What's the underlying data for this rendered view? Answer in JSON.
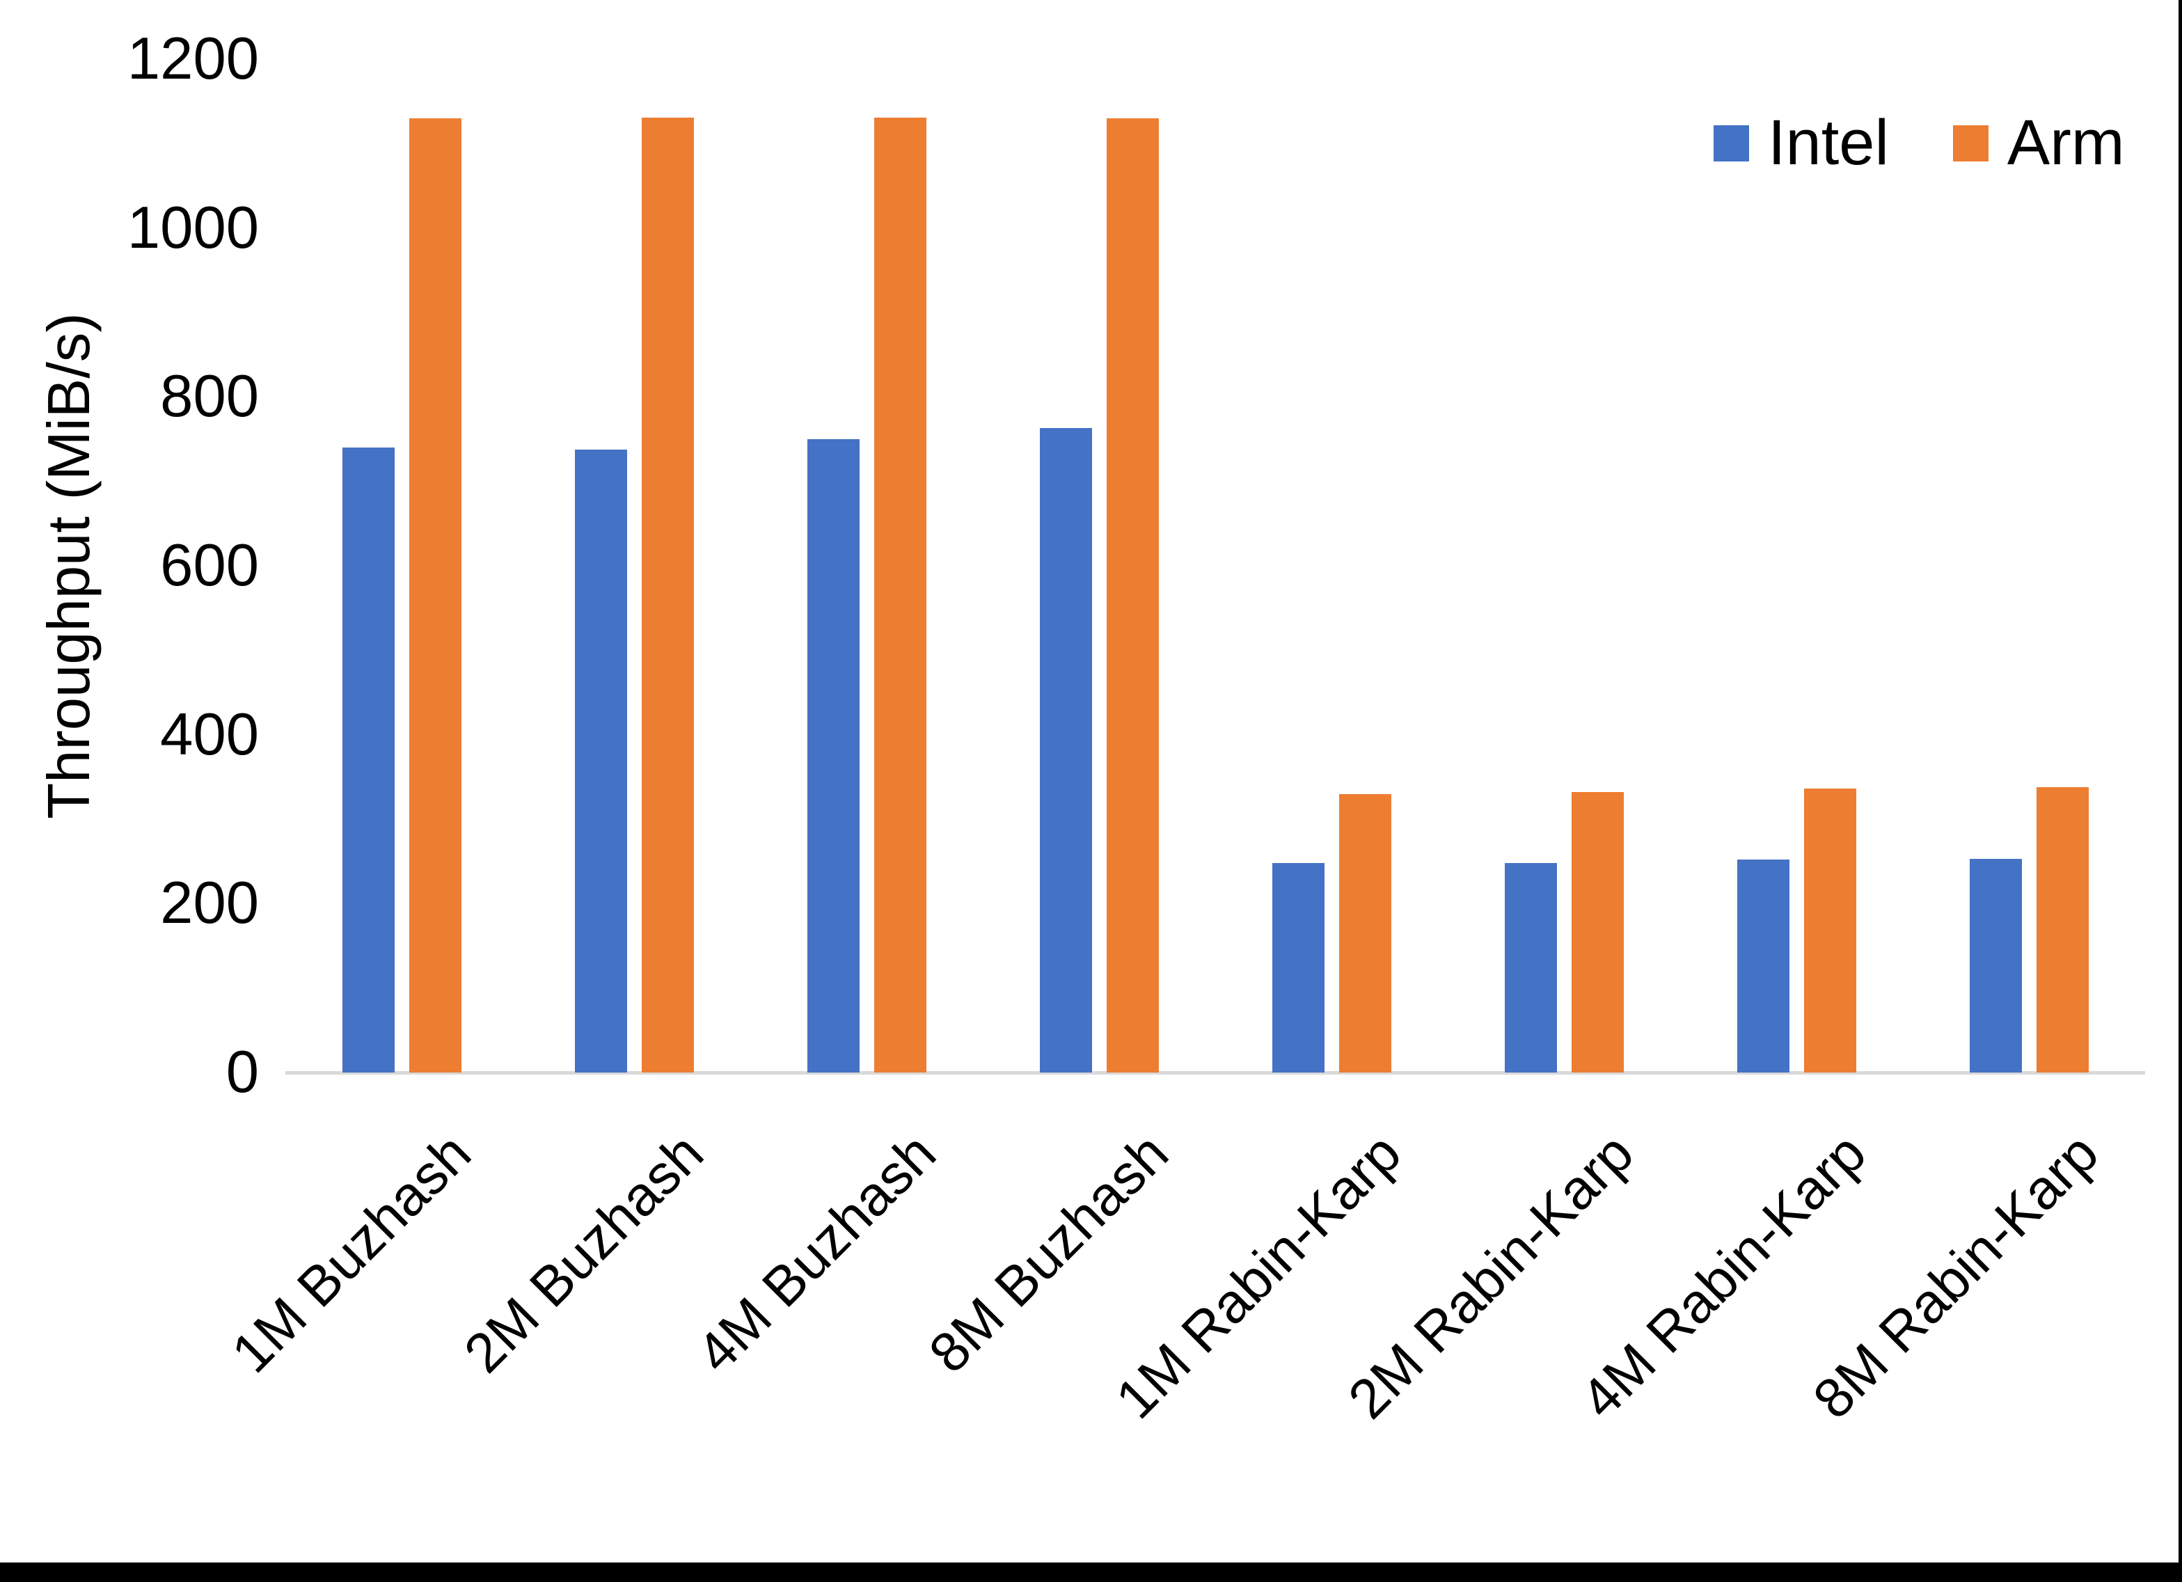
{
  "chart_data": {
    "type": "bar",
    "title": "",
    "xlabel": "",
    "ylabel": "Throughput (MiB/s)",
    "categories": [
      "1M Buzhash",
      "2M Buzhash",
      "4M Buzhash",
      "8M Buzhash",
      "1M Rabin-Karp",
      "2M Rabin-Karp",
      "4M Rabin-Karp",
      "8M Rabin-Karp"
    ],
    "series": [
      {
        "name": "Intel",
        "color": "#4472C4",
        "values": [
          740,
          738,
          750,
          763,
          248,
          248,
          252,
          253
        ]
      },
      {
        "name": "Arm",
        "color": "#ED7D31",
        "values": [
          1130,
          1131,
          1131,
          1130,
          330,
          332,
          336,
          338
        ]
      }
    ],
    "ylim": [
      0,
      1200
    ],
    "yticks": [
      0,
      200,
      400,
      600,
      800,
      1000,
      1200
    ],
    "grid": false,
    "legend_position": "top-right",
    "axis_line_color": "#D9D9D9",
    "text_color": "#000000",
    "background_color": "#FFFFFF"
  }
}
